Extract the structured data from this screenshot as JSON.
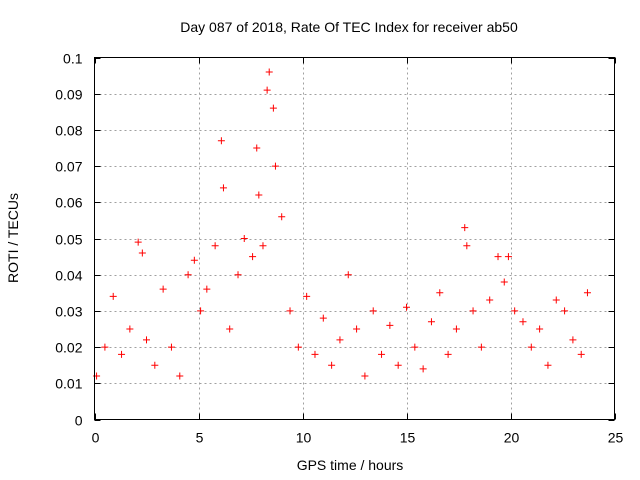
{
  "chart_data": {
    "type": "scatter",
    "title": "Day 087 of 2018, Rate Of TEC Index for receiver ab50",
    "xlabel": "GPS time / hours",
    "ylabel": "ROTI / TECUs",
    "xlim": [
      0,
      25
    ],
    "ylim": [
      0,
      0.1
    ],
    "x_ticks": [
      0,
      5,
      10,
      15,
      20,
      25
    ],
    "x_tick_labels": [
      "0",
      "5",
      "10",
      "15",
      "20",
      "25"
    ],
    "y_ticks": [
      0,
      0.01,
      0.02,
      0.03,
      0.04,
      0.05,
      0.06,
      0.07,
      0.08,
      0.09,
      0.1
    ],
    "y_tick_labels": [
      "0",
      "0.01",
      "0.02",
      "0.03",
      "0.04",
      "0.05",
      "0.06",
      "0.07",
      "0.08",
      "0.09",
      "0.1"
    ],
    "grid": true,
    "marker": "+",
    "color": "#ff0000",
    "points_x": [
      0.1,
      0.5,
      0.9,
      1.3,
      1.7,
      2.1,
      2.3,
      2.5,
      2.9,
      3.3,
      3.7,
      4.1,
      4.5,
      4.8,
      5.1,
      5.4,
      5.8,
      6.1,
      6.2,
      6.5,
      6.9,
      7.2,
      7.6,
      7.8,
      7.9,
      8.1,
      8.3,
      8.4,
      8.6,
      8.7,
      9.0,
      9.4,
      9.8,
      10.2,
      10.6,
      11.0,
      11.4,
      11.8,
      12.2,
      12.6,
      13.0,
      13.4,
      13.8,
      14.2,
      14.6,
      15.0,
      15.4,
      15.8,
      16.2,
      16.6,
      17.0,
      17.4,
      17.8,
      17.9,
      18.2,
      18.6,
      19.0,
      19.4,
      19.7,
      19.9,
      20.2,
      20.6,
      21.0,
      21.4,
      21.8,
      22.2,
      22.6,
      23.0,
      23.4,
      23.7
    ],
    "points_y": [
      0.012,
      0.02,
      0.034,
      0.018,
      0.025,
      0.049,
      0.046,
      0.022,
      0.015,
      0.036,
      0.02,
      0.012,
      0.04,
      0.044,
      0.03,
      0.036,
      0.048,
      0.077,
      0.064,
      0.025,
      0.04,
      0.05,
      0.045,
      0.075,
      0.062,
      0.048,
      0.091,
      0.096,
      0.086,
      0.07,
      0.056,
      0.03,
      0.02,
      0.034,
      0.018,
      0.028,
      0.015,
      0.022,
      0.04,
      0.025,
      0.012,
      0.03,
      0.018,
      0.026,
      0.015,
      0.031,
      0.02,
      0.014,
      0.027,
      0.035,
      0.018,
      0.025,
      0.053,
      0.048,
      0.03,
      0.02,
      0.033,
      0.045,
      0.038,
      0.045,
      0.03,
      0.027,
      0.02,
      0.025,
      0.015,
      0.033,
      0.03,
      0.022,
      0.018,
      0.035
    ]
  }
}
